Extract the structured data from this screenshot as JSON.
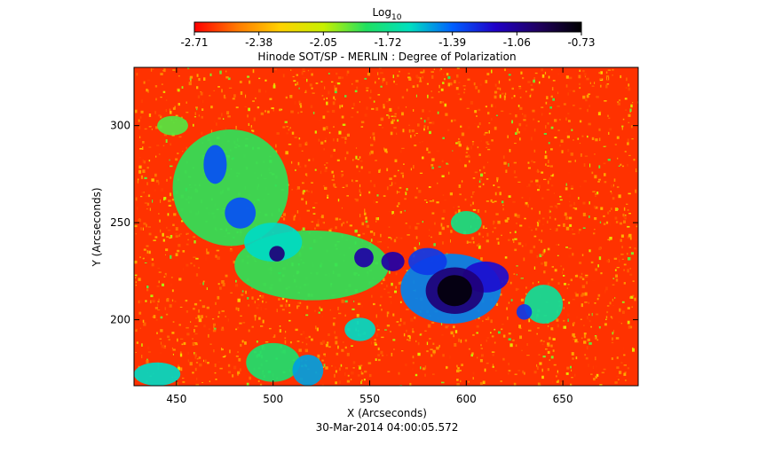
{
  "chart_data": {
    "type": "heatmap",
    "title": "Hinode SOT/SP - MERLIN : Degree of Polarization",
    "colorbar": {
      "title_base": "Log",
      "title_sub": "10",
      "ticks": [
        "-2.71",
        "-2.38",
        "-2.05",
        "-1.72",
        "-1.39",
        "-1.06",
        "-0.73"
      ],
      "range": [
        -2.71,
        -0.73
      ],
      "colors": [
        "#ff0000",
        "#ff7a00",
        "#ffd200",
        "#c8f000",
        "#20e060",
        "#00e0c0",
        "#0060ff",
        "#2000c8",
        "#200060",
        "#000000"
      ]
    },
    "xlabel": "X (Arcseconds)",
    "ylabel": "Y (Arcseconds)",
    "xlim": [
      428,
      689
    ],
    "ylim": [
      166,
      330
    ],
    "xticks": [
      "450",
      "500",
      "550",
      "600",
      "650"
    ],
    "yticks": [
      "300",
      "250",
      "200"
    ],
    "features": [
      {
        "x": 594,
        "y": 215,
        "rx": 9,
        "ry": 8,
        "level": -0.75
      },
      {
        "x": 594,
        "y": 215,
        "rx": 15,
        "ry": 12,
        "level": -1.0
      },
      {
        "x": 592,
        "y": 216,
        "rx": 26,
        "ry": 18,
        "level": -1.45
      },
      {
        "x": 610,
        "y": 222,
        "rx": 12,
        "ry": 8,
        "level": -1.2
      },
      {
        "x": 580,
        "y": 230,
        "rx": 10,
        "ry": 7,
        "level": -1.3
      },
      {
        "x": 562,
        "y": 230,
        "rx": 6,
        "ry": 5,
        "level": -1.1
      },
      {
        "x": 547,
        "y": 232,
        "rx": 5,
        "ry": 5,
        "level": -1.1
      },
      {
        "x": 520,
        "y": 228,
        "rx": 40,
        "ry": 18,
        "level": -1.85
      },
      {
        "x": 502,
        "y": 234,
        "rx": 4,
        "ry": 4,
        "level": -1.0
      },
      {
        "x": 500,
        "y": 240,
        "rx": 15,
        "ry": 10,
        "level": -1.6
      },
      {
        "x": 478,
        "y": 268,
        "rx": 30,
        "ry": 30,
        "level": -1.85
      },
      {
        "x": 483,
        "y": 255,
        "rx": 8,
        "ry": 8,
        "level": -1.35
      },
      {
        "x": 470,
        "y": 280,
        "rx": 6,
        "ry": 10,
        "level": -1.35
      },
      {
        "x": 500,
        "y": 178,
        "rx": 14,
        "ry": 10,
        "level": -1.8
      },
      {
        "x": 518,
        "y": 174,
        "rx": 8,
        "ry": 8,
        "level": -1.5
      },
      {
        "x": 440,
        "y": 172,
        "rx": 12,
        "ry": 6,
        "level": -1.6
      },
      {
        "x": 640,
        "y": 208,
        "rx": 10,
        "ry": 10,
        "level": -1.7
      },
      {
        "x": 630,
        "y": 204,
        "rx": 4,
        "ry": 4,
        "level": -1.3
      },
      {
        "x": 545,
        "y": 195,
        "rx": 8,
        "ry": 6,
        "level": -1.6
      },
      {
        "x": 600,
        "y": 250,
        "rx": 8,
        "ry": 6,
        "level": -1.75
      },
      {
        "x": 448,
        "y": 300,
        "rx": 8,
        "ry": 5,
        "level": -1.9
      }
    ],
    "background_level": -2.62,
    "date_label": "30-Mar-2014 04:00:05.572"
  }
}
